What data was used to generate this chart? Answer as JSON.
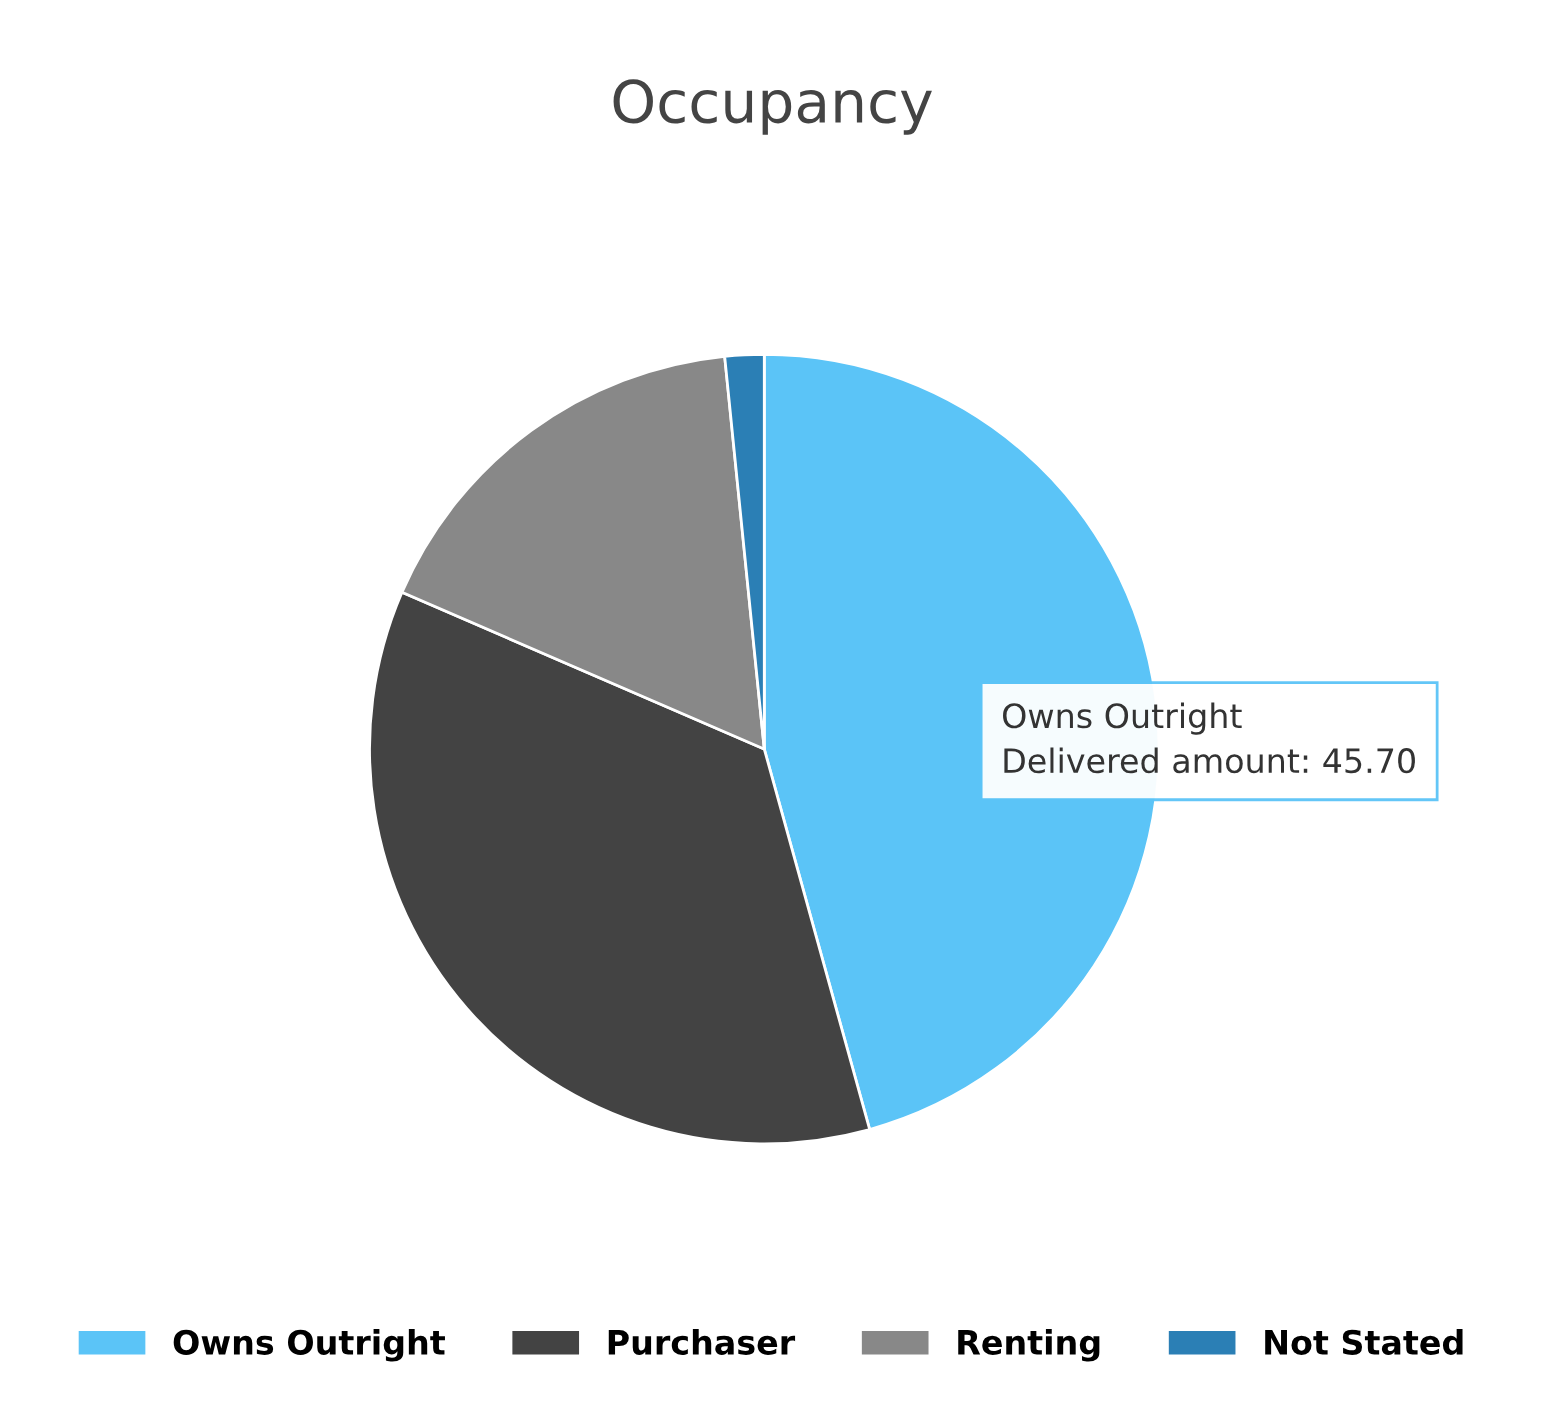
{
  "chart_data": {
    "type": "pie",
    "title": "Occupancy",
    "categories": [
      "Owns Outright",
      "Purchaser",
      "Renting",
      "Not Stated"
    ],
    "values": [
      45.7,
      35.8,
      16.9,
      1.6
    ],
    "colors": [
      "#5bc4f7",
      "#434343",
      "#888888",
      "#2b7fb5"
    ],
    "legend": "bottom",
    "annotations": [
      "Owns Outright",
      "Delivered amount: 45.70"
    ]
  }
}
